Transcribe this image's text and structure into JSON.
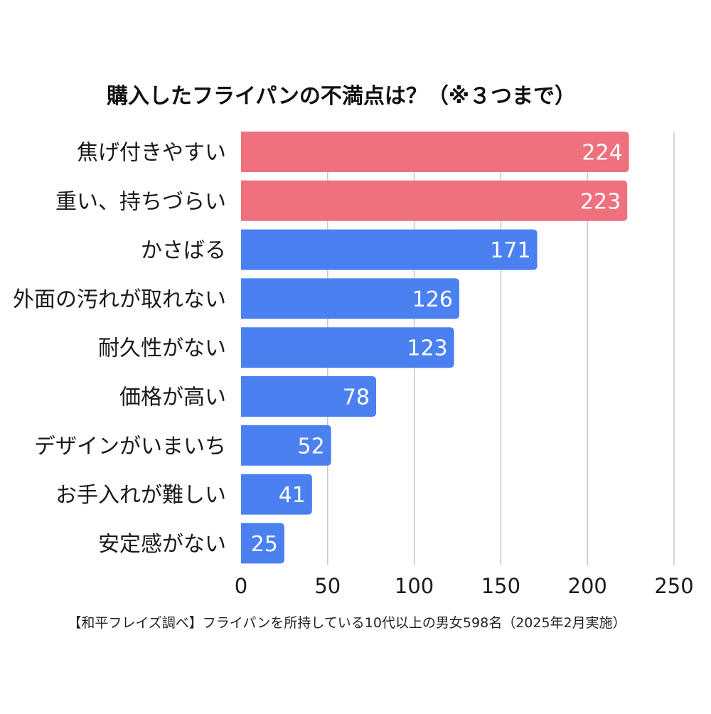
{
  "chart_data": {
    "type": "bar",
    "orientation": "horizontal",
    "title": "購入したフライパンの不満点は？（※３つまで）",
    "categories": [
      "焦げ付きやすい",
      "重い、持ちづらい",
      "かさばる",
      "外面の汚れが取れない",
      "耐久性がない",
      "価格が高い",
      "デザインがいまいち",
      "お手入れが難しい",
      "安定感がない"
    ],
    "values": [
      224,
      223,
      171,
      126,
      123,
      78,
      52,
      41,
      25
    ],
    "highlight_count": 2,
    "xlim": [
      0,
      250
    ],
    "xticks": [
      0,
      50,
      100,
      150,
      200,
      250
    ],
    "grid": "vertical",
    "colors": {
      "highlight": "#ee717d",
      "default": "#4a80f0",
      "grid": "#c8c8c8",
      "value_label": "#ffffff"
    }
  },
  "footnote": "【和平フレイズ調べ】フライパンを所持している10代以上の男女598名（2025年2月実施）"
}
